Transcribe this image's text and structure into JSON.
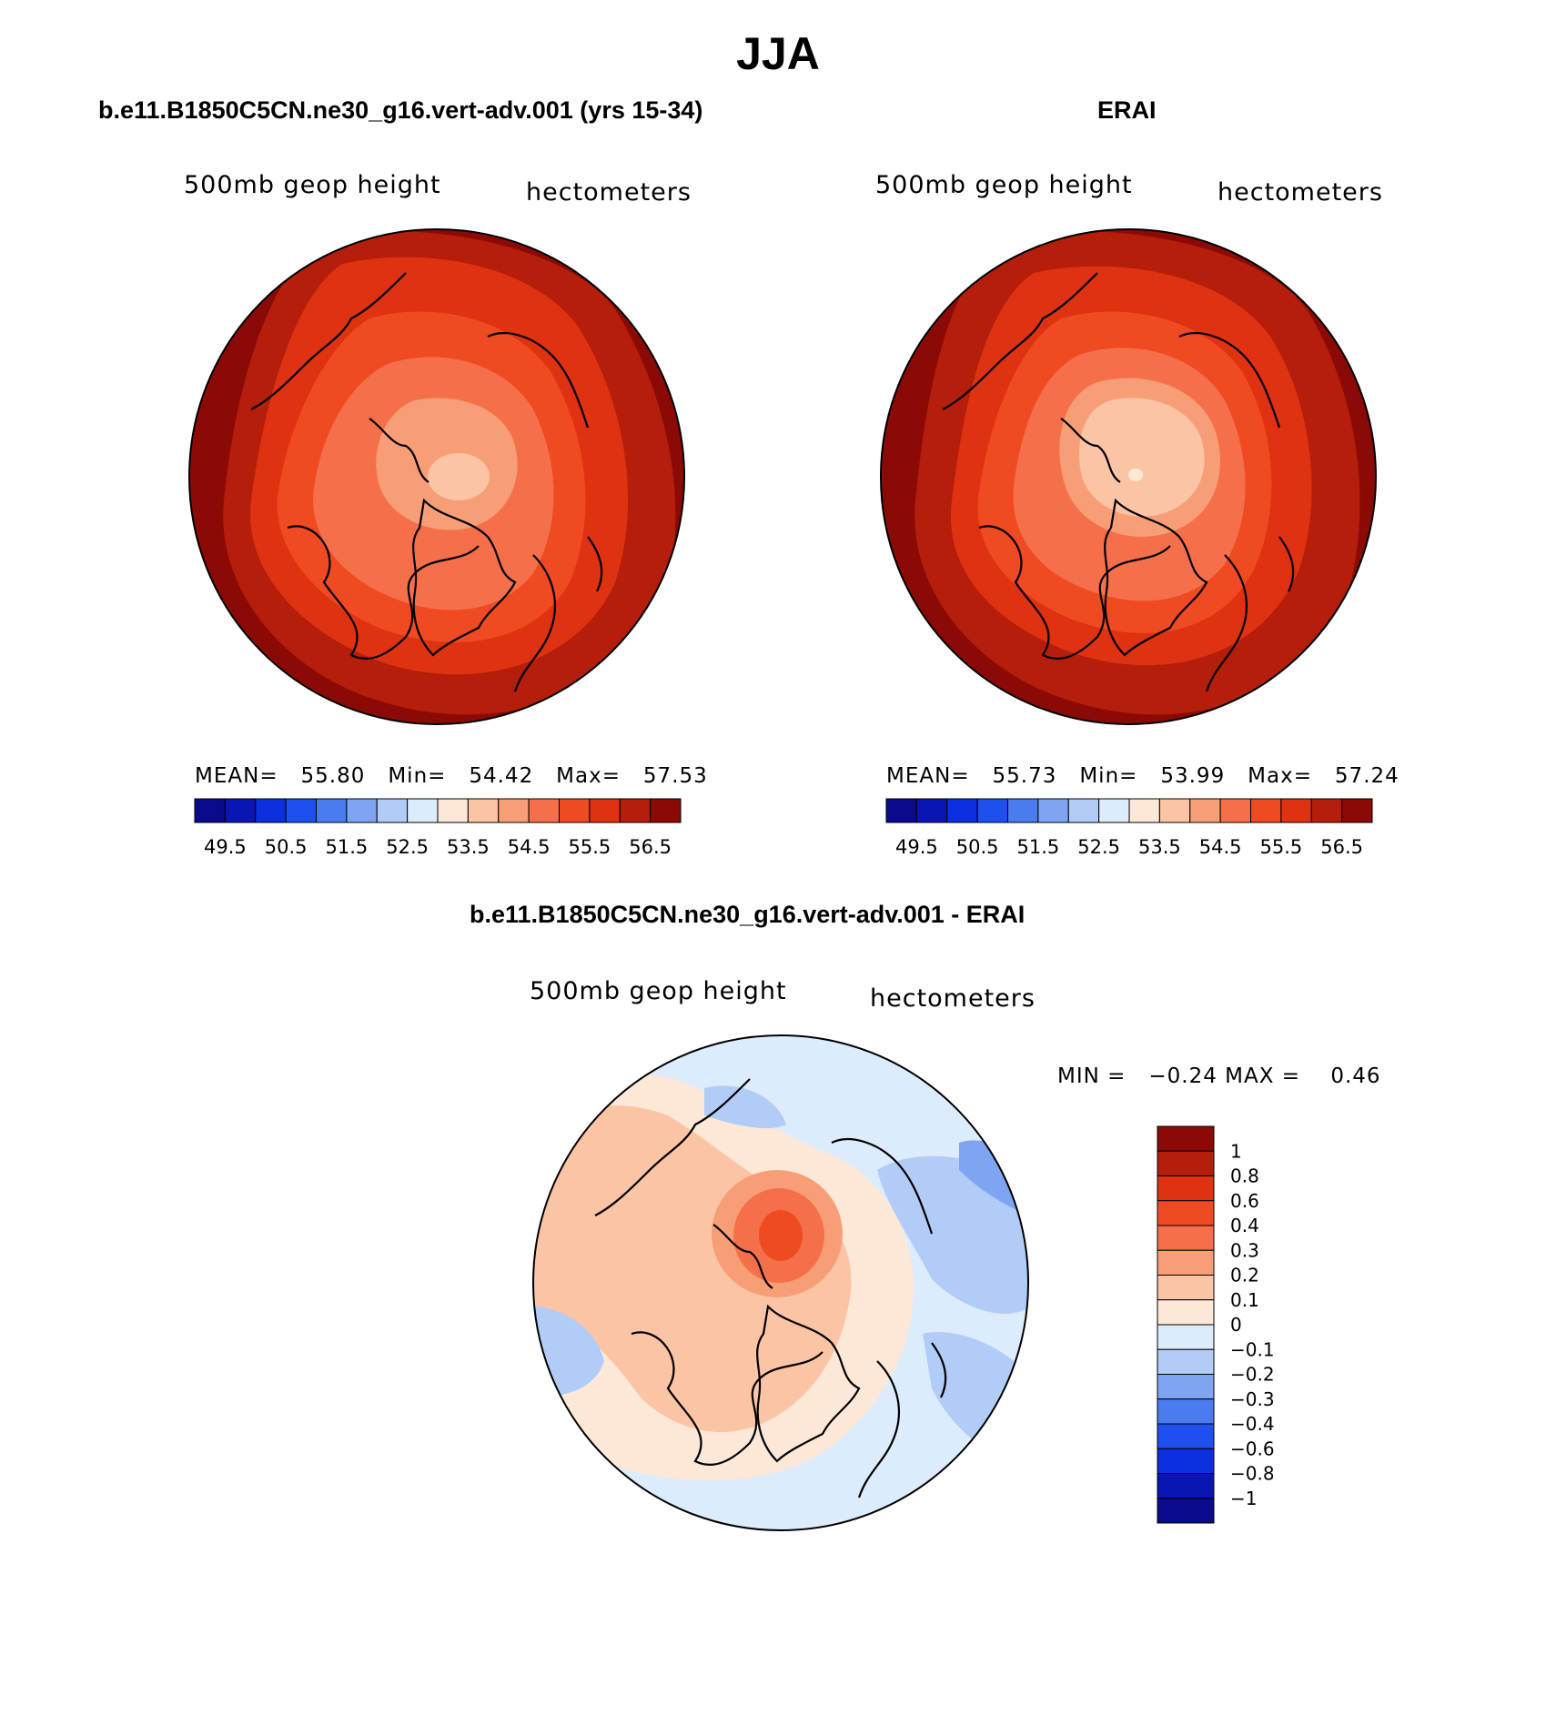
{
  "title": "JJA",
  "coastline_note": "continent outlines drawn as decorative paths",
  "chart_data": [
    {
      "type": "heatmap",
      "projection": "north-polar-stereographic",
      "title": "b.e11.B1850C5CN.ne30_g16.vert-adv.001 (yrs 15-34)",
      "left_label": "500mb geop height",
      "right_label": "hectometers",
      "stats": {
        "mean_label": "MEAN=",
        "mean": "55.80",
        "min_label": "Min=",
        "min": "54.42",
        "max_label": "Max=",
        "max": "57.53"
      },
      "levels": [
        49.5,
        50.0,
        50.5,
        51.0,
        51.5,
        52.0,
        52.5,
        53.0,
        53.5,
        54.0,
        54.5,
        55.0,
        55.5,
        56.0,
        56.5
      ],
      "colorbar_ticks": [
        "49.5",
        "50.5",
        "51.5",
        "52.5",
        "53.5",
        "54.5",
        "55.5",
        "56.5"
      ],
      "colors": [
        "#0a0a8c",
        "#0a16b4",
        "#0c2fe0",
        "#1e50f0",
        "#4a7cf0",
        "#7fa4f2",
        "#b2ccf8",
        "#dcecfc",
        "#fde8d8",
        "#fbc4a4",
        "#f89e76",
        "#f5704a",
        "#f04a22",
        "#df3210",
        "#b41e0a",
        "#8c0a06"
      ],
      "field_summary": {
        "pole_value": 54.42,
        "rim_value": 57.53
      }
    },
    {
      "type": "heatmap",
      "projection": "north-polar-stereographic",
      "title": "ERAI",
      "left_label": "500mb geop height",
      "right_label": "hectometers",
      "stats": {
        "mean_label": "MEAN=",
        "mean": "55.73",
        "min_label": "Min=",
        "min": "53.99",
        "max_label": "Max=",
        "max": "57.24"
      },
      "levels": [
        49.5,
        50.0,
        50.5,
        51.0,
        51.5,
        52.0,
        52.5,
        53.0,
        53.5,
        54.0,
        54.5,
        55.0,
        55.5,
        56.0,
        56.5
      ],
      "colorbar_ticks": [
        "49.5",
        "50.5",
        "51.5",
        "52.5",
        "53.5",
        "54.5",
        "55.5",
        "56.5"
      ],
      "colors": [
        "#0a0a8c",
        "#0a16b4",
        "#0c2fe0",
        "#1e50f0",
        "#4a7cf0",
        "#7fa4f2",
        "#b2ccf8",
        "#dcecfc",
        "#fde8d8",
        "#fbc4a4",
        "#f89e76",
        "#f5704a",
        "#f04a22",
        "#df3210",
        "#b41e0a",
        "#8c0a06"
      ],
      "field_summary": {
        "pole_value": 53.99,
        "rim_value": 57.24
      }
    },
    {
      "type": "heatmap",
      "projection": "north-polar-stereographic",
      "title": "b.e11.B1850C5CN.ne30_g16.vert-adv.001 - ERAI",
      "left_label": "500mb geop height",
      "right_label": "hectometers",
      "stats": {
        "min_label": "MIN =",
        "min": "−0.24",
        "max_label": "MAX =",
        "max": "0.46"
      },
      "colorbar_ticks": [
        "1",
        "0.8",
        "0.6",
        "0.4",
        "0.3",
        "0.2",
        "0.1",
        "0",
        "−0.1",
        "−0.2",
        "−0.3",
        "−0.4",
        "−0.6",
        "−0.8",
        "−1"
      ],
      "colors": [
        "#8c0a06",
        "#b41e0a",
        "#df3210",
        "#f04a22",
        "#f5704a",
        "#f89e76",
        "#fbc4a4",
        "#fde8d8",
        "#dcecfc",
        "#b2ccf8",
        "#7fa4f2",
        "#4a7cf0",
        "#1e50f0",
        "#0c2fe0",
        "#0a16b4",
        "#0a0a8c"
      ]
    }
  ]
}
